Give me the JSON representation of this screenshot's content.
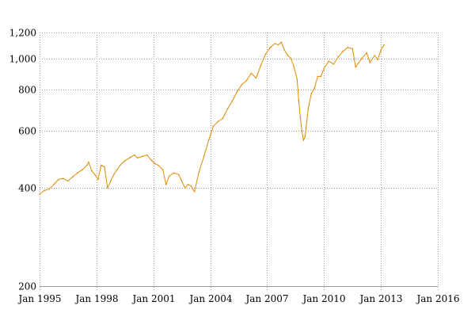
{
  "chart_data": {
    "type": "line",
    "title": "",
    "xlabel": "",
    "ylabel": "",
    "y_scale": "log",
    "ylim": [
      200,
      1200
    ],
    "xlim": [
      "1995-01",
      "2016-01"
    ],
    "grid": true,
    "legend": "none",
    "line_color": "#e08a00",
    "y_ticks": [
      {
        "value": 200,
        "label": "200"
      },
      {
        "value": 400,
        "label": "400"
      },
      {
        "value": 600,
        "label": "600"
      },
      {
        "value": 800,
        "label": "800"
      },
      {
        "value": 1000,
        "label": "1,000"
      },
      {
        "value": 1200,
        "label": "1,200"
      }
    ],
    "x_ticks": [
      {
        "value": "1995-01",
        "label": "Jan 1995"
      },
      {
        "value": "1998-01",
        "label": "Jan 1998"
      },
      {
        "value": "2001-01",
        "label": "Jan 2001"
      },
      {
        "value": "2004-01",
        "label": "Jan 2004"
      },
      {
        "value": "2007-01",
        "label": "Jan 2007"
      },
      {
        "value": "2010-01",
        "label": "Jan 2010"
      },
      {
        "value": "2013-01",
        "label": "Jan 2013"
      },
      {
        "value": "2016-01",
        "label": "Jan 2016"
      }
    ],
    "series": [
      {
        "x": [
          "1995-01",
          "1995-04",
          "1995-07",
          "1995-10",
          "1996-01",
          "1996-04",
          "1996-07",
          "1996-10",
          "1997-01",
          "1997-04",
          "1997-07",
          "1997-08",
          "1997-10",
          "1997-12",
          "1998-02",
          "1998-04",
          "1998-06",
          "1998-08",
          "1998-10",
          "1998-12",
          "1999-02",
          "1999-04",
          "1999-07",
          "1999-10",
          "2000-01",
          "2000-03",
          "2000-06",
          "2000-09",
          "2000-12",
          "2001-02",
          "2001-04",
          "2001-07",
          "2001-09",
          "2001-11",
          "2002-02",
          "2002-05",
          "2002-07",
          "2002-09",
          "2002-11",
          "2003-01",
          "2003-03",
          "2003-06",
          "2003-09",
          "2003-12",
          "2004-03",
          "2004-06",
          "2004-09",
          "2004-12",
          "2005-03",
          "2005-06",
          "2005-09",
          "2005-12",
          "2006-03",
          "2006-06",
          "2006-09",
          "2006-12",
          "2007-03",
          "2007-06",
          "2007-08",
          "2007-10",
          "2007-12",
          "2008-02",
          "2008-04",
          "2008-06",
          "2008-08",
          "2008-09",
          "2008-10",
          "2008-11",
          "2008-12",
          "2009-01",
          "2009-03",
          "2009-05",
          "2009-07",
          "2009-09",
          "2009-11",
          "2010-01",
          "2010-04",
          "2010-07",
          "2010-10",
          "2011-01",
          "2011-04",
          "2011-07",
          "2011-09",
          "2011-11",
          "2012-01",
          "2012-04",
          "2012-06",
          "2012-09",
          "2012-11",
          "2013-01",
          "2013-03"
        ],
        "y": [
          383,
          393,
          397,
          410,
          425,
          428,
          420,
          433,
          445,
          455,
          470,
          480,
          452,
          440,
          425,
          470,
          465,
          400,
          420,
          440,
          455,
          470,
          485,
          495,
          505,
          495,
          500,
          505,
          485,
          475,
          470,
          455,
          410,
          435,
          445,
          440,
          420,
          400,
          410,
          405,
          390,
          450,
          500,
          560,
          620,
          640,
          655,
          700,
          740,
          790,
          830,
          855,
          900,
          870,
          950,
          1030,
          1080,
          1110,
          1100,
          1120,
          1060,
          1020,
          1000,
          940,
          860,
          740,
          660,
          600,
          560,
          575,
          700,
          780,
          810,
          880,
          880,
          930,
          980,
          960,
          1010,
          1050,
          1080,
          1070,
          940,
          970,
          1000,
          1040,
          970,
          1020,
          990,
          1060,
          1100
        ]
      }
    ]
  }
}
